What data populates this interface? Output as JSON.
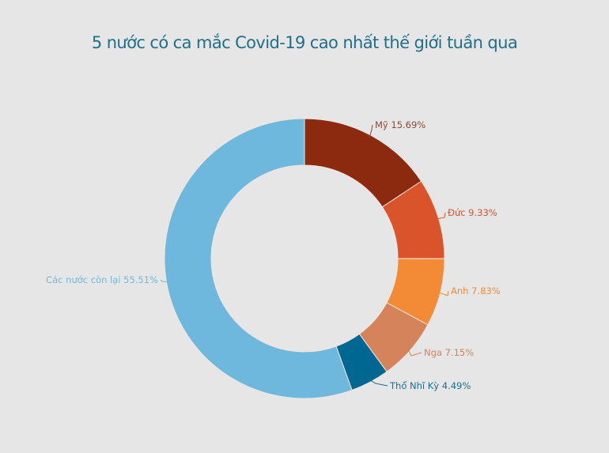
{
  "title": "5 nước có ca mắc Covid-19 cao nhất thế giới tuần qua",
  "chart_data": {
    "type": "pie",
    "subtype": "donut",
    "title": "5 nước có ca mắc Covid-19 cao nhất thế giới tuần qua",
    "categories": [
      "Mỹ",
      "Đức",
      "Anh",
      "Nga",
      "Thổ Nhĩ Kỳ",
      "Các nước còn lại"
    ],
    "values": [
      15.69,
      9.33,
      7.83,
      7.15,
      4.49,
      55.51
    ],
    "unit": "%",
    "colors": [
      "#8b2a0e",
      "#d9542a",
      "#f28a36",
      "#d4835a",
      "#006792",
      "#6fb8dd"
    ],
    "labels": [
      "Mỹ 15.69%",
      "Đức 9.33%",
      "Anh 7.83%",
      "Nga 7.15%",
      "Thổ Nhĩ Kỳ 4.49%",
      "Các nước còn lại 55.51%"
    ],
    "label_colors": [
      "#8b4a35",
      "#d9542a",
      "#f28a36",
      "#d4835a",
      "#1a6f94",
      "#6fb8dd"
    ],
    "start_angle": 0,
    "direction": "clockwise",
    "legend": "none (data labels with leader lines)"
  },
  "background": "#e6e6e6"
}
